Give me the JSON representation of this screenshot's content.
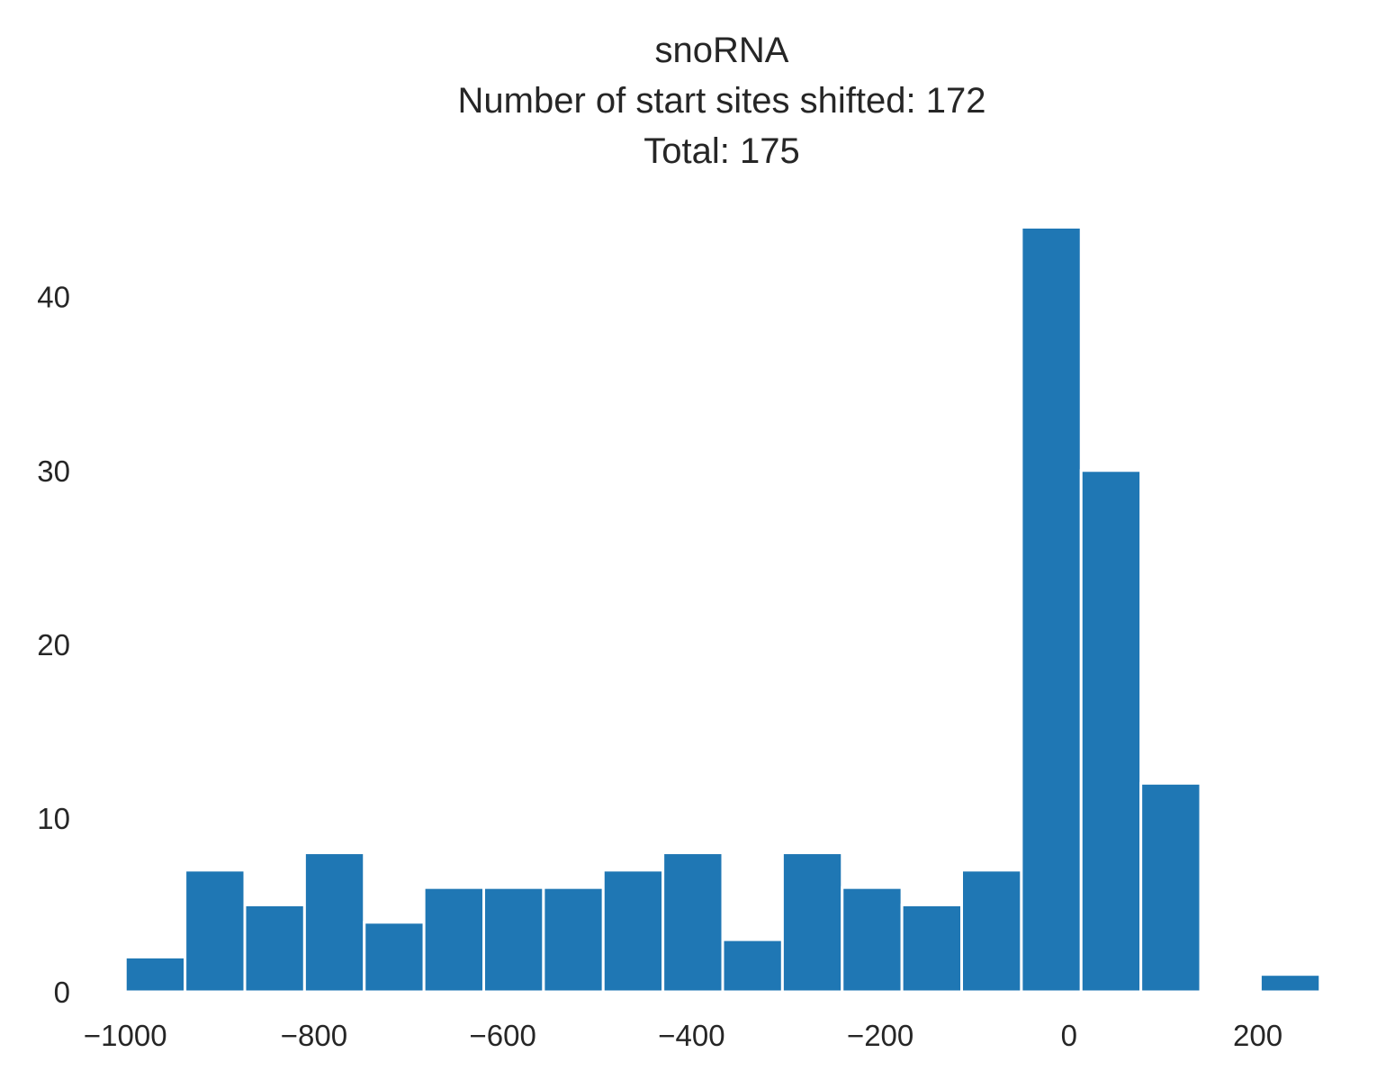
{
  "chart_data": {
    "type": "bar",
    "title_lines": [
      "snoRNA",
      "Number of start sites shifted: 172",
      "Total: 175"
    ],
    "xlabel": "",
    "ylabel": "",
    "bin_edges": [
      -1000,
      -936.7,
      -873.4,
      -810.1,
      -746.8,
      -683.5,
      -620.2,
      -556.9,
      -493.6,
      -430.3,
      -367.0,
      -303.7,
      -240.4,
      -177.1,
      -113.8,
      -50.5,
      12.8,
      76.1,
      139.4,
      202.7,
      266.0
    ],
    "values": [
      2,
      7,
      5,
      8,
      4,
      6,
      6,
      6,
      7,
      8,
      3,
      8,
      6,
      5,
      7,
      44,
      30,
      12,
      0,
      1
    ],
    "xlim": [
      -1031.7,
      297.7
    ],
    "ylim": [
      0,
      46.2
    ],
    "x_ticks": [
      -1000,
      -800,
      -600,
      -400,
      -200,
      0,
      200
    ],
    "x_tick_labels": [
      "−1000",
      "−800",
      "−600",
      "−400",
      "−200",
      "0",
      "200"
    ],
    "y_ticks": [
      0,
      10,
      20,
      30,
      40
    ],
    "y_tick_labels": [
      "0",
      "10",
      "20",
      "30",
      "40"
    ],
    "grid": false,
    "bar_color": "#1f77b4",
    "background": "#ffffff"
  }
}
